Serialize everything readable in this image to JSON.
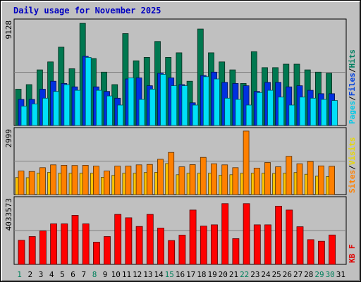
{
  "chart_data": {
    "type": "bar",
    "title": "Daily usage for November 2025",
    "days": [
      "1",
      "2",
      "3",
      "4",
      "5",
      "6",
      "7",
      "8",
      "9",
      "10",
      "11",
      "12",
      "13",
      "14",
      "15",
      "16",
      "17",
      "18",
      "19",
      "20",
      "21",
      "22",
      "23",
      "24",
      "25",
      "26",
      "27",
      "28",
      "29",
      "30",
      "31"
    ],
    "weekend_days": [
      1,
      8,
      15,
      22,
      29,
      30
    ],
    "day_label_colors": {
      "weekday": "#000000",
      "weekend": "#00805c"
    },
    "panels": [
      {
        "name": "hits-files-pages",
        "max_label": "9128",
        "max": 9128,
        "right_labels": [
          {
            "text": "Pages",
            "color": "#00c8e8"
          },
          {
            "text": "/",
            "color": "#000000"
          },
          {
            "text": "Files",
            "color": "#0040e0"
          },
          {
            "text": "/",
            "color": "#000000"
          },
          {
            "text": "Hits",
            "color": "#008060"
          }
        ],
        "series": [
          {
            "name": "Hits",
            "color": "#007850",
            "values": [
              3200,
              3600,
              4900,
              5600,
              6900,
              5000,
              9000,
              5900,
              4700,
              3600,
              8100,
              5700,
              6000,
              7400,
              6000,
              6400,
              3900,
              8500,
              6400,
              5600,
              4900,
              3700,
              6500,
              5100,
              5100,
              5400,
              5400,
              4900,
              4700,
              4600,
              0
            ]
          },
          {
            "name": "Files",
            "color": "#0030e0",
            "values": [
              2300,
              2300,
              3200,
              3900,
              3700,
              3400,
              6100,
              3400,
              3000,
              2400,
              4100,
              4200,
              3500,
              4600,
              4200,
              3600,
              2000,
              4400,
              4700,
              3800,
              3700,
              3500,
              3000,
              3800,
              3800,
              3400,
              3500,
              3100,
              2800,
              2800,
              0
            ]
          },
          {
            "name": "Pages",
            "color": "#00e0f8",
            "values": [
              1700,
              1900,
              2400,
              3000,
              3600,
              3100,
              6000,
              3100,
              2600,
              1800,
              4200,
              2300,
              3200,
              4500,
              3500,
              3500,
              1800,
              4300,
              4100,
              2400,
              2300,
              1800,
              2900,
              3100,
              2500,
              1800,
              2500,
              2400,
              2300,
              2200,
              0
            ]
          }
        ]
      },
      {
        "name": "sites-visits",
        "max_label": "2999",
        "max": 2999,
        "right_labels": [
          {
            "text": "Sites",
            "color": "#ff8000"
          },
          {
            "text": "/",
            "color": "#000000"
          },
          {
            "text": "Visits",
            "color": "#e8d800"
          }
        ],
        "series": [
          {
            "name": "Visits",
            "color": "#ffc400",
            "values": [
              800,
              790,
              1000,
              1040,
              1000,
              1000,
              1000,
              1000,
              810,
              900,
              1000,
              1000,
              1030,
              1040,
              1450,
              930,
              1000,
              1000,
              1000,
              910,
              930,
              1000,
              1000,
              1000,
              990,
              1000,
              1030,
              950,
              860,
              840,
              0
            ]
          },
          {
            "name": "Sites",
            "color": "#ff8000",
            "values": [
              1100,
              1080,
              1260,
              1390,
              1370,
              1360,
              1370,
              1330,
              1100,
              1330,
              1330,
              1390,
              1410,
              1650,
              1970,
              1300,
              1400,
              1740,
              1440,
              1390,
              1260,
              2970,
              1240,
              1500,
              1300,
              1790,
              1440,
              1550,
              1340,
              1320,
              0
            ]
          }
        ]
      },
      {
        "name": "kbf",
        "max_label": "4033573",
        "max": 4033573,
        "right_labels": [
          {
            "text": "KB F",
            "color": "#e00000"
          }
        ],
        "series": [
          {
            "name": "KB F",
            "color": "#ff0000",
            "values": [
              1500000,
              1730000,
              2080000,
              2520000,
              2520000,
              3050000,
              2520000,
              1380000,
              1730000,
              3110000,
              2900000,
              2360000,
              3110000,
              2260000,
              1480000,
              1820000,
              3380000,
              2380000,
              2460000,
              3780000,
              1600000,
              3780000,
              2460000,
              2460000,
              3620000,
              3380000,
              2340000,
              1540000,
              1440000,
              1830000,
              0
            ]
          }
        ]
      }
    ]
  }
}
